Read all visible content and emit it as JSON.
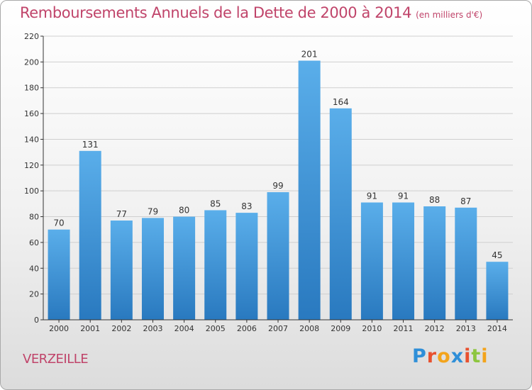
{
  "title": "Remboursements Annuels de la Dette de 2000 à 2014",
  "unit": "(en milliers d'€)",
  "commune": "VERZEILLE",
  "logo": {
    "text": "Proxiti",
    "letters": [
      {
        "ch": "P",
        "color": "#2f8fd8"
      },
      {
        "ch": "r",
        "color": "#e8512f"
      },
      {
        "ch": "o",
        "color": "#f3a41c"
      },
      {
        "ch": "x",
        "color": "#2f8fd8"
      },
      {
        "ch": "i",
        "color": "#e8512f"
      },
      {
        "ch": "t",
        "color": "#8dc63f"
      },
      {
        "ch": "i",
        "color": "#f3a41c"
      }
    ]
  },
  "colors": {
    "title": "#c0446a",
    "bar_top": "#5aaeea",
    "bar_bottom": "#2979bf"
  },
  "chart_data": {
    "type": "bar",
    "categories": [
      "2000",
      "2001",
      "2002",
      "2003",
      "2004",
      "2005",
      "2006",
      "2007",
      "2008",
      "2009",
      "2010",
      "2011",
      "2012",
      "2013",
      "2014"
    ],
    "values": [
      70,
      131,
      77,
      79,
      80,
      85,
      83,
      99,
      201,
      164,
      91,
      91,
      88,
      87,
      45
    ],
    "ylim": [
      0,
      220
    ],
    "yticks": [
      0,
      20,
      40,
      60,
      80,
      100,
      120,
      140,
      160,
      180,
      200,
      220
    ],
    "grid": true,
    "data_labels": true
  }
}
